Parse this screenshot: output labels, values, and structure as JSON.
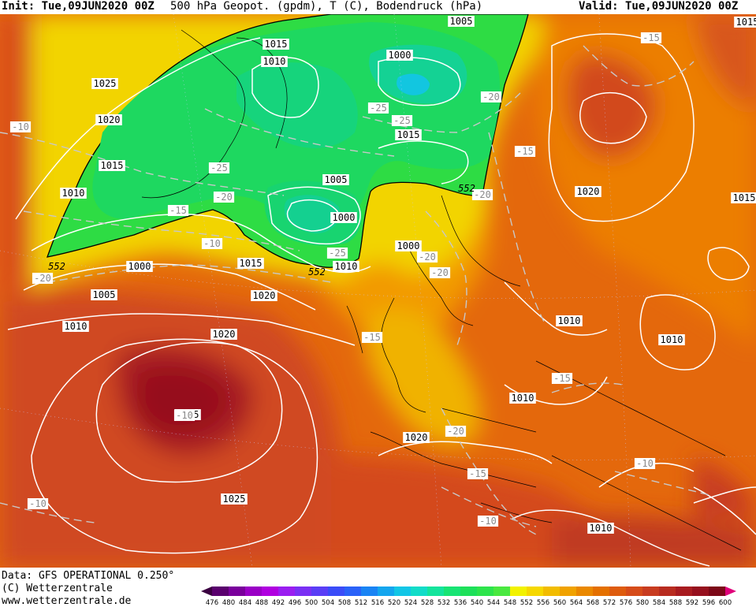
{
  "header": {
    "init": "Init: Tue,09JUN2020 00Z",
    "title": "500 hPa Geopot. (gpdm), T (C), Bodendruck (hPa)",
    "valid": "Valid: Tue,09JUN2020 00Z"
  },
  "footer": {
    "data_source": "Data: GFS OPERATIONAL 0.250°",
    "copyright": "(C) Wetterzentrale",
    "website": "www.wetterzentrale.de"
  },
  "pressure_labels": [
    {
      "text": "1005"
    },
    {
      "text": "1015"
    },
    {
      "text": "1015"
    },
    {
      "text": "1010"
    },
    {
      "text": "1000"
    },
    {
      "text": "1025"
    },
    {
      "text": "1020"
    },
    {
      "text": "1015"
    },
    {
      "text": "1010"
    },
    {
      "text": "1005"
    },
    {
      "text": "1000"
    },
    {
      "text": "1015"
    },
    {
      "text": "1015"
    },
    {
      "text": "1000"
    },
    {
      "text": "1000"
    },
    {
      "text": "1005"
    },
    {
      "text": "1010"
    },
    {
      "text": "1010"
    },
    {
      "text": "1020"
    },
    {
      "text": "1020"
    },
    {
      "text": "1020"
    },
    {
      "text": "1025"
    },
    {
      "text": "1010"
    },
    {
      "text": "1010"
    },
    {
      "text": "1010"
    },
    {
      "text": "1020"
    },
    {
      "text": "1025"
    },
    {
      "text": "1010"
    },
    {
      "text": "1015"
    }
  ],
  "temp_labels": [
    {
      "text": "-15"
    },
    {
      "text": "-10"
    },
    {
      "text": "-25"
    },
    {
      "text": "-20"
    },
    {
      "text": "-25"
    },
    {
      "text": "-15"
    },
    {
      "text": "-25"
    },
    {
      "text": "-20"
    },
    {
      "text": "-15"
    },
    {
      "text": "-10"
    },
    {
      "text": "-20"
    },
    {
      "text": "-20"
    },
    {
      "text": "-25"
    },
    {
      "text": "-20"
    },
    {
      "text": "-20"
    },
    {
      "text": "-15"
    },
    {
      "text": "-15"
    },
    {
      "text": "-10"
    },
    {
      "text": "-20"
    },
    {
      "text": "-15"
    },
    {
      "text": "-10"
    },
    {
      "text": "-10"
    },
    {
      "text": "-10"
    }
  ],
  "geopot_labels": [
    {
      "text": "552"
    },
    {
      "text": "552"
    },
    {
      "text": "552"
    }
  ],
  "colorbar": {
    "values": [
      "476",
      "480",
      "484",
      "488",
      "492",
      "496",
      "500",
      "504",
      "508",
      "512",
      "516",
      "520",
      "524",
      "528",
      "532",
      "536",
      "540",
      "544",
      "548",
      "552",
      "556",
      "560",
      "564",
      "568",
      "572",
      "576",
      "580",
      "584",
      "588",
      "592",
      "596",
      "600"
    ],
    "colors": [
      "#3a0040",
      "#5a006e",
      "#7a009c",
      "#9a00c6",
      "#b000e0",
      "#9a1ef0",
      "#7a30f4",
      "#5a3ef6",
      "#3a4cf8",
      "#2a62f8",
      "#1a84f4",
      "#14a6ee",
      "#12c6e6",
      "#12dcc8",
      "#14e49c",
      "#18e474",
      "#1ee05a",
      "#2ee44c",
      "#4ae840",
      "#f2f200",
      "#f6d800",
      "#f2bc00",
      "#f0a200",
      "#ea8800",
      "#e47000",
      "#de5c0e",
      "#d64c1a",
      "#c83c20",
      "#b82c20",
      "#a81c20",
      "#96101e",
      "#7c0818"
    ]
  }
}
